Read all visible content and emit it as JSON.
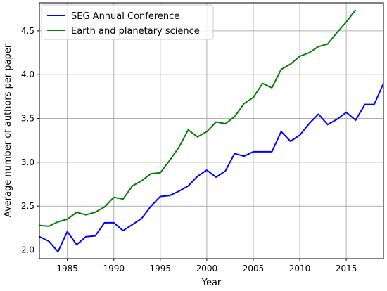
{
  "chart_data": {
    "type": "line",
    "title": "",
    "xlabel": "Year",
    "ylabel": "Average number of authors per paper",
    "xlim": [
      1982,
      2019
    ],
    "ylim": [
      1.9,
      4.82
    ],
    "x_ticks": [
      1985,
      1990,
      1995,
      2000,
      2005,
      2010,
      2015
    ],
    "y_ticks": [
      2.0,
      2.5,
      3.0,
      3.5,
      4.0,
      4.5
    ],
    "y_tick_labels": [
      "2.0",
      "2.5",
      "3.0",
      "3.5",
      "4.0",
      "4.5"
    ],
    "grid": true,
    "legend_position": "top-left",
    "series": [
      {
        "name": "SEG Annual Conference",
        "color": "#0000ff",
        "x": [
          1982,
          1983,
          1984,
          1985,
          1986,
          1987,
          1988,
          1989,
          1990,
          1991,
          1992,
          1993,
          1994,
          1995,
          1996,
          1997,
          1998,
          1999,
          2000,
          2001,
          2002,
          2003,
          2004,
          2005,
          2006,
          2007,
          2008,
          2009,
          2010,
          2011,
          2012,
          2013,
          2014,
          2015,
          2016,
          2017,
          2018,
          2019
        ],
        "values": [
          2.15,
          2.1,
          1.98,
          2.21,
          2.06,
          2.15,
          2.16,
          2.31,
          2.31,
          2.22,
          2.29,
          2.36,
          2.5,
          2.61,
          2.62,
          2.67,
          2.73,
          2.84,
          2.91,
          2.83,
          2.9,
          3.1,
          3.07,
          3.12,
          3.12,
          3.12,
          3.35,
          3.24,
          3.31,
          3.44,
          3.55,
          3.43,
          3.49,
          3.57,
          3.48,
          3.66,
          3.66,
          3.9
        ]
      },
      {
        "name": "Earth and planetary science",
        "color": "#008000",
        "x": [
          1982,
          1983,
          1984,
          1985,
          1986,
          1987,
          1988,
          1989,
          1990,
          1991,
          1992,
          1993,
          1994,
          1995,
          1996,
          1997,
          1998,
          1999,
          2000,
          2001,
          2002,
          2003,
          2004,
          2005,
          2006,
          2007,
          2008,
          2009,
          2010,
          2011,
          2012,
          2013,
          2014,
          2015,
          2016
        ],
        "values": [
          2.28,
          2.27,
          2.32,
          2.35,
          2.43,
          2.4,
          2.43,
          2.49,
          2.6,
          2.58,
          2.73,
          2.79,
          2.87,
          2.88,
          3.02,
          3.17,
          3.37,
          3.29,
          3.35,
          3.46,
          3.44,
          3.52,
          3.67,
          3.74,
          3.9,
          3.85,
          4.06,
          4.12,
          4.21,
          4.25,
          4.32,
          4.35,
          4.48,
          4.6,
          4.74
        ]
      }
    ]
  }
}
